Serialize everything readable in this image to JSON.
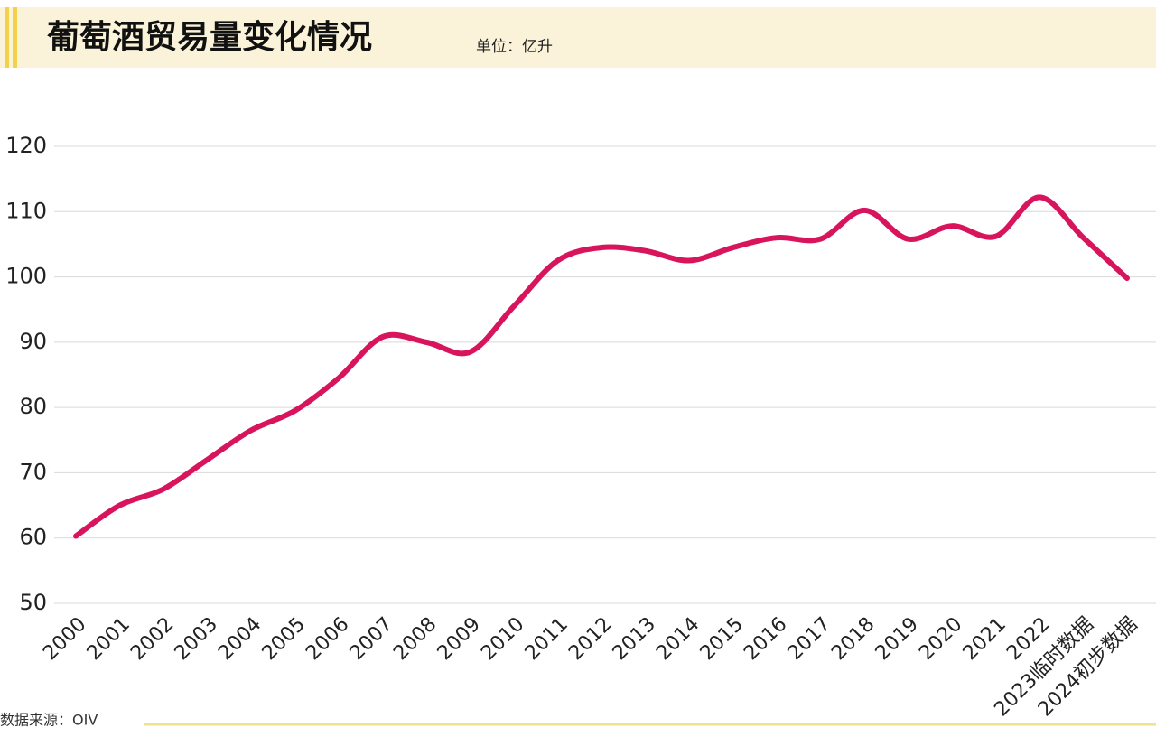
{
  "chart_data": {
    "type": "line",
    "title": "葡萄酒贸易量变化情况",
    "subtitle": "单位：亿升",
    "source": "数据来源：OIV",
    "categories": [
      "2000",
      "2001",
      "2002",
      "2003",
      "2004",
      "2005",
      "2006",
      "2007",
      "2008",
      "2009",
      "2010",
      "2011",
      "2012",
      "2013",
      "2014",
      "2015",
      "2016",
      "2017",
      "2018",
      "2019",
      "2020",
      "2021",
      "2022",
      "2023临时数据",
      "2024初步数据"
    ],
    "series": [
      {
        "name": "葡萄酒贸易量",
        "color": "#d8145c",
        "values": [
          60.3,
          65,
          67.5,
          72,
          76.5,
          79.5,
          84.5,
          90.8,
          90,
          88.5,
          95.5,
          102.5,
          104.5,
          104,
          102.5,
          104.5,
          106,
          105.8,
          110.2,
          105.8,
          107.8,
          106.2,
          112.2,
          106,
          99.8
        ]
      }
    ],
    "ylim": [
      50,
      120
    ],
    "yticks": [
      50,
      60,
      70,
      80,
      90,
      100,
      110,
      120
    ],
    "grid": true
  }
}
